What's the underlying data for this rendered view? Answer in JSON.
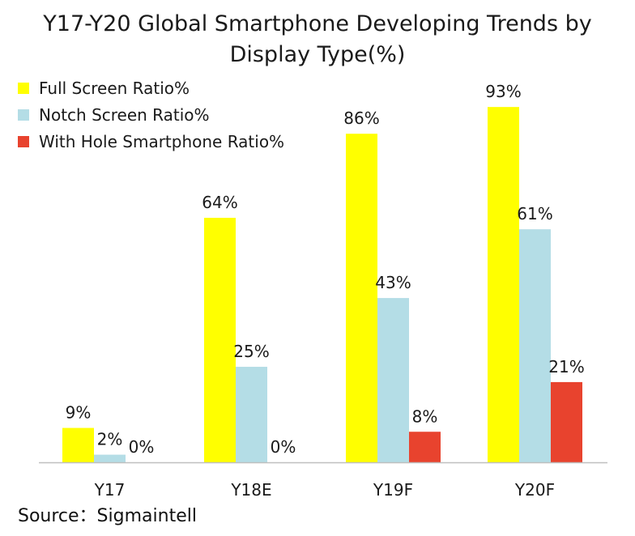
{
  "chart_data": {
    "type": "bar",
    "title_lines": [
      "Y17-Y20 Global Smartphone Developing Trends by",
      "Display Type(%)"
    ],
    "categories": [
      "Y17",
      "Y18E",
      "Y19F",
      "Y20F"
    ],
    "series": [
      {
        "name": "Full Screen Ratio%",
        "color": "#FFFF00",
        "values": [
          9,
          64,
          86,
          93
        ]
      },
      {
        "name": "Notch Screen Ratio%",
        "color": "#B4DDE6",
        "values": [
          2,
          25,
          43,
          61
        ]
      },
      {
        "name": "With Hole Smartphone Ratio%",
        "color": "#E8432E",
        "values": [
          0,
          0,
          8,
          21
        ]
      }
    ],
    "value_suffix": "%",
    "ylim": [
      0,
      100
    ],
    "grid": false,
    "legend_position": "top-left",
    "source": "Source：Sigmaintell"
  }
}
